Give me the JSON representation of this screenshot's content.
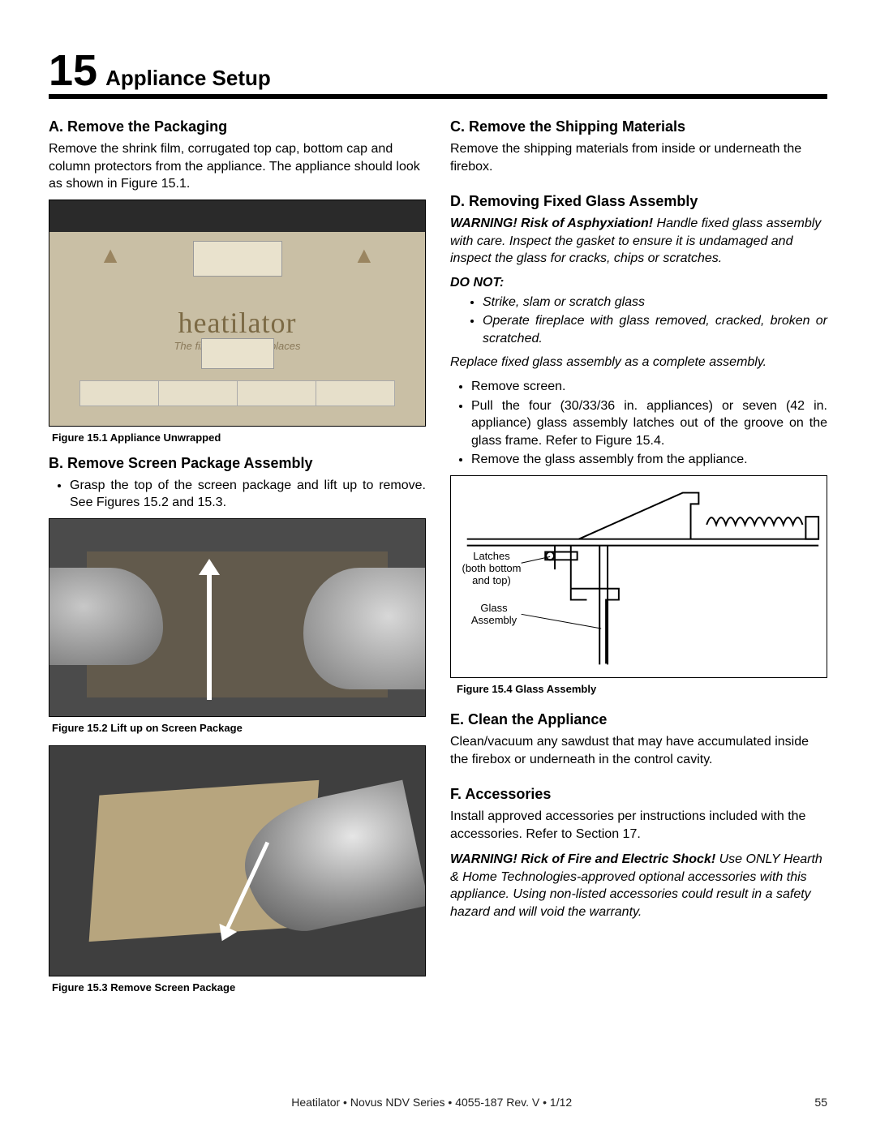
{
  "section_number": "15",
  "section_title": "Appliance Setup",
  "left": {
    "a_head": "A. Remove the Packaging",
    "a_body": "Remove the shrink film, corrugated top cap, bottom cap and column protectors from the appliance. The appliance should look as shown in Figure 15.1.",
    "fig1_cap": "Figure 15.1 Appliance Unwrapped",
    "fig1_brand": "heatilator",
    "fig1_tag": "The first name in fireplaces",
    "b_head": "B. Remove Screen Package Assembly",
    "b_body": "Grasp the top of the screen package and lift up to remove. See Figures 15.2 and 15.3.",
    "fig2_cap": "Figure 15.2  Lift up on Screen Package",
    "fig3_cap": "Figure 15.3  Remove Screen Package"
  },
  "right": {
    "c_head": "C. Remove the Shipping Materials",
    "c_body": "Remove the shipping materials from inside or underneath the firebox.",
    "d_head": "D. Removing Fixed Glass Assembly",
    "d_warn_bold": "WARNING! Risk of Asphyxiation!",
    "d_warn_rest": " Handle fixed glass assembly with care. Inspect the gasket to ensure it is undamaged and inspect the glass for cracks, chips or scratches.",
    "donot": "DO NOT:",
    "donot_items": [
      "Strike, slam or scratch glass",
      "Operate fireplace with glass removed, cracked, broken or scratched."
    ],
    "replace_line": "Replace fixed glass assembly as a complete assembly.",
    "d_steps": [
      "Remove screen.",
      "Pull the four (30/33/36 in. appliances) or seven (42 in. appliance) glass assembly latches out of the groove on the glass frame. Refer to Figure 15.4.",
      "Remove the glass assembly from the appliance."
    ],
    "fig4_cap": "Figure 15.4  Glass Assembly",
    "fig4_label1": "Latches\n(both bottom\nand top)",
    "fig4_label2": "Glass\nAssembly",
    "e_head": "E. Clean the Appliance",
    "e_body": "Clean/vacuum any sawdust that may have accumulated inside the firebox or underneath in the control cavity.",
    "f_head": "F.  Accessories",
    "f_body": "Install approved accessories per instructions included with the accessories. Refer to Section 17.",
    "f_warn_bold": "WARNING! Rick of Fire and Electric Shock!",
    "f_warn_rest": " Use ONLY Hearth & Home Technologies-approved optional accessories with this appliance. Using non-listed accessories could result in a safety hazard and will void the warranty."
  },
  "footer_center": "Heatilator  •  Novus NDV Series  •  4055-187 Rev. V  •  1/12",
  "footer_page": "55",
  "colors": {
    "rule": "#000000",
    "text": "#000000",
    "photo_bg": "#555555"
  },
  "typography": {
    "section_number_pt": 54,
    "section_title_pt": 26,
    "sub_head_pt": 18,
    "body_pt": 16,
    "caption_pt": 13
  }
}
